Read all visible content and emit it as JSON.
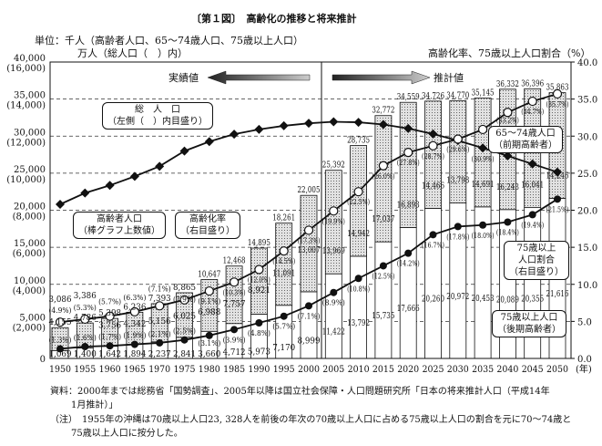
{
  "title": "〔第１図〕　高齢化の推移と将来推計",
  "units": {
    "line1": "単位：千人（高齢者人口、65～74歳人口、75歳以上人口）",
    "line2": "万人（総人口（　）内）",
    "right": "高齢化率、75歳以上人口割合（%）"
  },
  "arrows": {
    "actual": "実績値",
    "projected": "推計値"
  },
  "callouts": {
    "total_pop": [
      "総　人　口",
      "（左側（　）内目盛り）"
    ],
    "elderly": [
      "高齢者人口",
      "（棒グラフ上数値）"
    ],
    "aging_rate": [
      "高齢化率",
      "（右目盛り）"
    ],
    "young_old": [
      "65～74歳人口",
      "（前期高齢者）"
    ],
    "ratio75": [
      "75歳以上",
      "人口割合",
      "（右目盛り）"
    ],
    "old_old": [
      "75歳以上人口",
      "（後期高齢者）"
    ]
  },
  "source": "資料：2000年までは総務省「国勢調査」、2005年以降は国立社会保障・人口問題研究所「日本の将来推計人口（平成14年",
  "source2": "1月推計）」",
  "note": "（注）　1955年の沖縄は70歳以上人口23, 328人を前後の年次の70歳以上人口に占める75歳以上人口の割合を元に70～74歳と",
  "note2": "75歳以上人口に按分した。",
  "chart_data": {
    "type": "bar",
    "categories": [
      "1950",
      "1955",
      "1960",
      "1965",
      "1970",
      "1975",
      "1980",
      "1985",
      "1990",
      "1995",
      "2000",
      "2005",
      "2010",
      "2015",
      "2020",
      "2025",
      "2030",
      "2035",
      "2040",
      "2045",
      "2050"
    ],
    "xunit": "(年)",
    "left_ticks": [
      "0",
      "5,000",
      "10,000",
      "15,000",
      "20,000",
      "25,000",
      "30,000",
      "35,000",
      "40,000"
    ],
    "left_ticks_pop": [
      "",
      "(2,000)",
      "(4,000)",
      "(6,000)",
      "(8,000)",
      "(10,000)",
      "(12,000)",
      "(14,000)",
      "(16,000)"
    ],
    "right_ticks": [
      "0.0",
      "5.0",
      "10.0",
      "15.0",
      "20.0",
      "25.0",
      "30.0",
      "35.0",
      "40.0"
    ],
    "ylim": [
      0,
      40000
    ],
    "ylim_right": [
      0,
      40
    ],
    "series": [
      {
        "name": "高齢者人口",
        "values": [
          4155,
          4786,
          5398,
          6236,
          7393,
          8865,
          10647,
          12468,
          14895,
          18261,
          22005,
          25392,
          28735,
          32772,
          34559,
          34726,
          34770,
          35145,
          36332,
          36396,
          35863
        ]
      },
      {
        "name": "65～74歳人口",
        "values": [
          3086,
          3386,
          3756,
          4342,
          5156,
          6025,
          6988,
          7757,
          8921,
          11091,
          13007,
          13969,
          14942,
          17037,
          16893,
          14466,
          13798,
          14691,
          16243,
          16041,
          14246
        ]
      },
      {
        "name": "75歳以上人口",
        "values": [
          1069,
          1400,
          1642,
          1894,
          2237,
          2841,
          3660,
          4712,
          5973,
          7170,
          8999,
          11422,
          13792,
          15735,
          17666,
          20260,
          20972,
          20453,
          20089,
          20355,
          21616
        ]
      },
      {
        "name": "高齢化率",
        "values": [
          4.9,
          5.3,
          5.7,
          6.3,
          7.1,
          7.9,
          9.1,
          10.3,
          12.0,
          14.5,
          17.3,
          19.9,
          22.5,
          26.0,
          27.8,
          28.7,
          29.6,
          30.9,
          33.2,
          34.7,
          35.7
        ]
      },
      {
        "name": "75歳以上人口割合",
        "values": [
          1.3,
          1.6,
          1.7,
          1.9,
          2.1,
          2.5,
          3.1,
          3.9,
          4.8,
          5.7,
          7.1,
          8.9,
          10.8,
          12.5,
          14.2,
          16.7,
          17.8,
          18.0,
          18.4,
          19.4,
          21.5
        ]
      },
      {
        "name": "総人口（万人）",
        "values": [
          8320,
          8928,
          9342,
          9828,
          10372,
          11194,
          11706,
          12105,
          12361,
          12557,
          12693,
          12774,
          12747,
          12627,
          12411,
          12114,
          11758,
          11360,
          10934,
          10496,
          10059
        ]
      }
    ]
  }
}
